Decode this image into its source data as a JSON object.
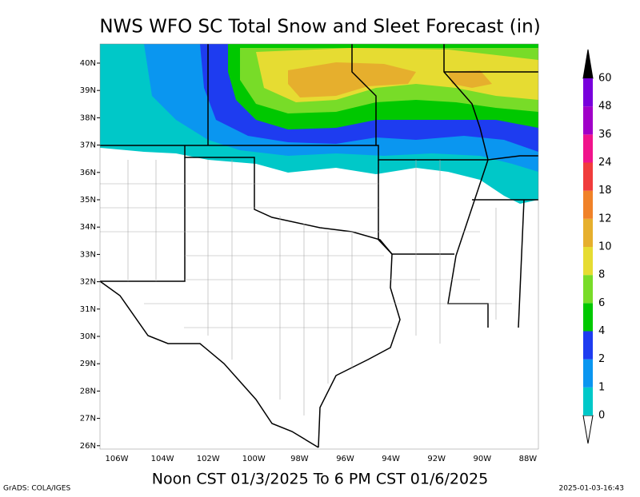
{
  "header": {
    "title": "NWS WFO SC Total Snow and Sleet Forecast (in)"
  },
  "map": {
    "lat_labels": [
      "40N",
      "39N",
      "38N",
      "37N",
      "36N",
      "35N",
      "34N",
      "33N",
      "32N",
      "31N",
      "30N",
      "29N",
      "28N",
      "27N",
      "26N"
    ],
    "lon_labels": [
      "106W",
      "104W",
      "102W",
      "100W",
      "98W",
      "96W",
      "94W",
      "92W",
      "90W",
      "88W"
    ]
  },
  "legend": {
    "labels": [
      "0",
      "1",
      "2",
      "4",
      "6",
      "8",
      "10",
      "12",
      "18",
      "24",
      "36",
      "48",
      "60"
    ],
    "colors": [
      "#00c8c8",
      "#0a96f0",
      "#1e3cf0",
      "#00c800",
      "#78dc28",
      "#e6dc32",
      "#e6af2d",
      "#f08228",
      "#f03c3c",
      "#f0148c",
      "#a000c8",
      "#7800dc"
    ],
    "over_color": "#000000",
    "under_color": "#ffffff"
  },
  "footer": {
    "valid_period": "Noon CST 01/3/2025 To 6 PM CST 01/6/2025",
    "credit": "GrADS: COLA/IGES",
    "timestamp": "2025-01-03-16:43"
  }
}
